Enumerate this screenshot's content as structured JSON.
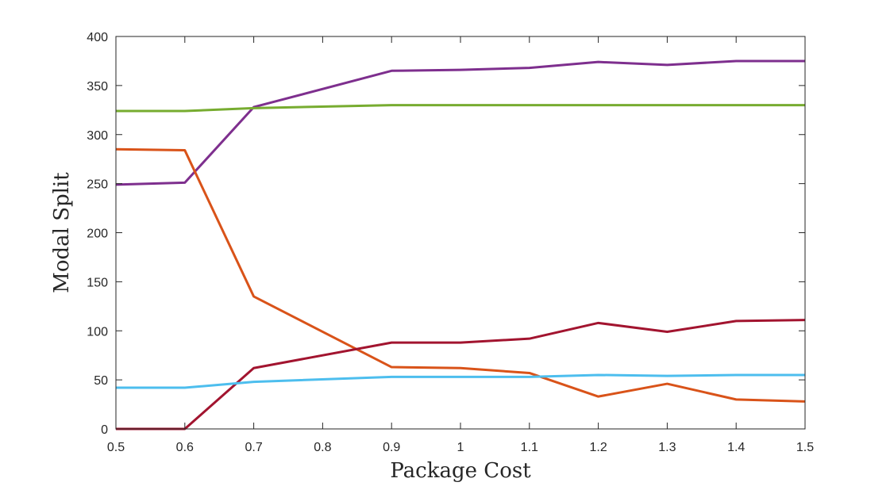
{
  "chart_data": {
    "type": "line",
    "title": "",
    "xlabel": "Package Cost",
    "ylabel": "Modal Split",
    "xlim": [
      0.5,
      1.5
    ],
    "ylim": [
      0,
      400
    ],
    "xticks": [
      0.5,
      0.6,
      0.7,
      0.8,
      0.9,
      1,
      1.1,
      1.2,
      1.3,
      1.4,
      1.5
    ],
    "yticks": [
      0,
      50,
      100,
      150,
      200,
      250,
      300,
      350,
      400
    ],
    "xtick_labels": [
      "0.5",
      "0.6",
      "0.7",
      "0.8",
      "0.9",
      "1",
      "1.1",
      "1.2",
      "1.3",
      "1.4",
      "1.5"
    ],
    "ytick_labels": [
      "0",
      "50",
      "100",
      "150",
      "200",
      "250",
      "300",
      "350",
      "400"
    ],
    "grid": false,
    "legend": "none",
    "x": [
      0.5,
      0.6,
      0.7,
      0.9,
      1.0,
      1.1,
      1.2,
      1.3,
      1.4,
      1.5
    ],
    "series": [
      {
        "name": "purple",
        "color": "#7E2F8E",
        "values": [
          249,
          251,
          328,
          365,
          366,
          368,
          374,
          371,
          375,
          375
        ]
      },
      {
        "name": "green",
        "color": "#77AC30",
        "values": [
          324,
          324,
          327,
          330,
          330,
          330,
          330,
          330,
          330,
          330
        ]
      },
      {
        "name": "orange",
        "color": "#D95319",
        "values": [
          285,
          284,
          135,
          63,
          62,
          57,
          33,
          46,
          30,
          28
        ]
      },
      {
        "name": "dark-red",
        "color": "#A2142F",
        "values": [
          0,
          0,
          62,
          88,
          88,
          92,
          108,
          99,
          110,
          111
        ]
      },
      {
        "name": "light-blue",
        "color": "#4DBEEE",
        "values": [
          42,
          42,
          48,
          53,
          53,
          53,
          55,
          54,
          55,
          55
        ]
      }
    ]
  }
}
